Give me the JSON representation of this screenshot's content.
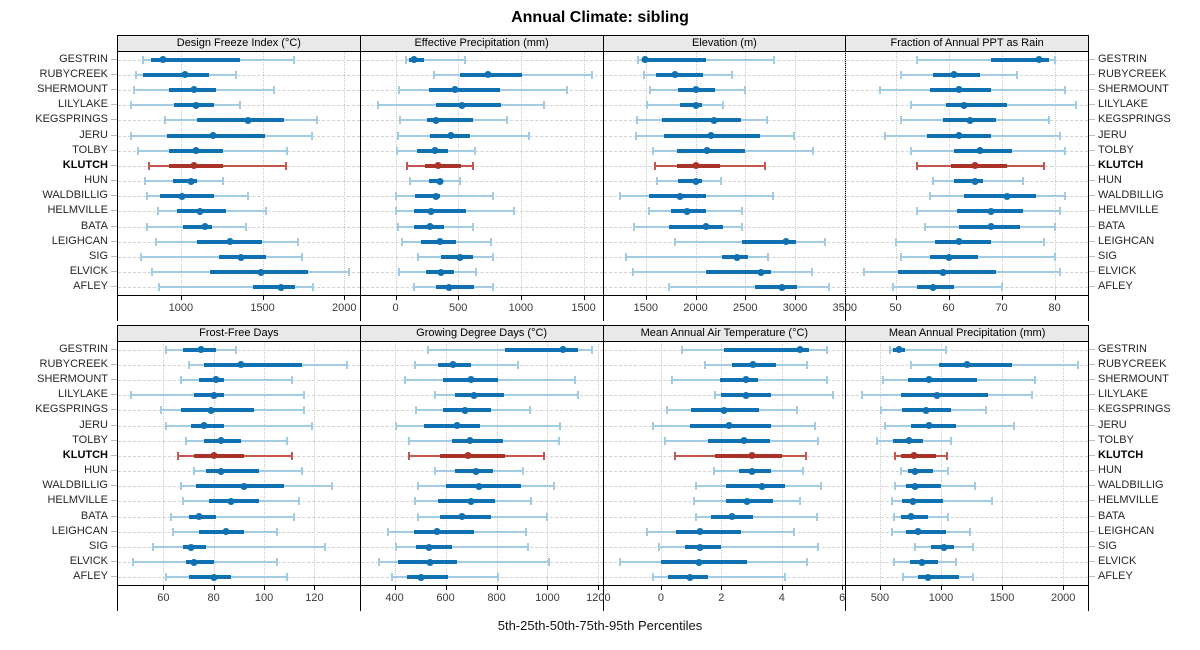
{
  "title": "Annual Climate: sibling",
  "caption": "5th-25th-50th-75th-95th Percentiles",
  "sites": [
    "GESTRIN",
    "RUBYCREEK",
    "SHERMOUNT",
    "LILYLAKE",
    "KEGSPRINGS",
    "JERU",
    "TOLBY",
    "KLUTCH",
    "HUN",
    "WALDBILLIG",
    "HELMVILLE",
    "BATA",
    "LEIGHCAN",
    "SIG",
    "ELVICK",
    "AFLEY"
  ],
  "highlight_site": "KLUTCH",
  "colors": {
    "blue_light": "#a3cce3",
    "blue_dark": "#0f71b2",
    "red_light": "#c4574e",
    "red_dark": "#a93229",
    "grid": "#d2d2d2",
    "strip_bg": "#e9e9e9",
    "border": "#000000"
  },
  "legend_note": "Each row shows 5th, 25th, 50th, 75th, 95th percentiles; thin line = 5th-95th, thick bar = 25th-75th, dot = median",
  "chart_data": [
    {
      "type": "interval",
      "title": "Design Freeze Index (°C)",
      "axis_min": 615,
      "axis_max": 2095,
      "ticks": [
        1000,
        1500,
        2000
      ],
      "values": [
        [
          770,
          815,
          890,
          1360,
          1690
        ],
        [
          725,
          770,
          1025,
          1170,
          1340
        ],
        [
          715,
          925,
          1080,
          1215,
          1570
        ],
        [
          695,
          955,
          1095,
          1205,
          1360
        ],
        [
          900,
          1100,
          1410,
          1630,
          1835
        ],
        [
          695,
          915,
          1195,
          1515,
          1805
        ],
        [
          735,
          925,
          1090,
          1255,
          1650
        ],
        [
          805,
          925,
          1080,
          1255,
          1645
        ],
        [
          780,
          950,
          1060,
          1100,
          1255
        ],
        [
          790,
          870,
          1005,
          1205,
          1410
        ],
        [
          860,
          975,
          1115,
          1275,
          1520
        ],
        [
          795,
          1015,
          1150,
          1190,
          1400
        ],
        [
          845,
          1100,
          1300,
          1495,
          1720
        ],
        [
          755,
          1235,
          1365,
          1520,
          1740
        ],
        [
          825,
          1180,
          1490,
          1780,
          2030
        ],
        [
          865,
          1440,
          1610,
          1700,
          1810
        ]
      ]
    },
    {
      "type": "interval",
      "title": "Effective Precipitation (mm)",
      "axis_min": -278,
      "axis_max": 1651,
      "ticks": [
        0,
        500,
        1000,
        1500
      ],
      "values": [
        [
          80,
          105,
          150,
          230,
          555
        ],
        [
          310,
          510,
          735,
          1010,
          1565
        ],
        [
          25,
          265,
          475,
          830,
          1370
        ],
        [
          -140,
          325,
          530,
          845,
          1185
        ],
        [
          35,
          250,
          320,
          620,
          885
        ],
        [
          20,
          275,
          445,
          595,
          1065
        ],
        [
          10,
          170,
          315,
          415,
          630
        ],
        [
          90,
          235,
          335,
          525,
          615
        ],
        [
          115,
          270,
          355,
          370,
          515
        ],
        [
          5,
          155,
          325,
          355,
          780
        ],
        [
          0,
          145,
          285,
          560,
          945
        ],
        [
          20,
          145,
          275,
          390,
          620
        ],
        [
          55,
          205,
          355,
          480,
          760
        ],
        [
          175,
          365,
          510,
          615,
          775
        ],
        [
          25,
          245,
          360,
          470,
          645
        ],
        [
          150,
          320,
          425,
          625,
          775
        ]
      ]
    },
    {
      "type": "interval",
      "title": "Elevation (m)",
      "axis_min": 1075,
      "axis_max": 3505,
      "ticks": [
        1500,
        2000,
        2500,
        3000,
        3500
      ],
      "values": [
        [
          1420,
          1460,
          1495,
          2105,
          2790
        ],
        [
          1485,
          1600,
          1790,
          2080,
          2365
        ],
        [
          1540,
          1820,
          2000,
          2200,
          2495
        ],
        [
          1510,
          1845,
          2000,
          2070,
          2275
        ],
        [
          1410,
          1665,
          2185,
          2460,
          2720
        ],
        [
          1400,
          1680,
          2155,
          2645,
          2985
        ],
        [
          1575,
          1810,
          2120,
          2495,
          3185
        ],
        [
          1590,
          1810,
          2005,
          2250,
          2695
        ],
        [
          1610,
          1825,
          2000,
          2070,
          2260
        ],
        [
          1240,
          1535,
          1845,
          2105,
          2775
        ],
        [
          1535,
          1755,
          1915,
          2105,
          2470
        ],
        [
          1385,
          1730,
          2110,
          2275,
          2470
        ],
        [
          1795,
          2465,
          2905,
          3010,
          3305
        ],
        [
          1305,
          2270,
          2415,
          2530,
          2730
        ],
        [
          1370,
          2105,
          2660,
          2760,
          3175
        ],
        [
          1730,
          2595,
          2870,
          3020,
          3345
        ]
      ]
    },
    {
      "type": "interval",
      "title": "Fraction of Annual PPT as Rain",
      "axis_min": 40.7,
      "axis_max": 86.3,
      "ticks": [
        50,
        60,
        70,
        80
      ],
      "values": [
        [
          54,
          68,
          77,
          79,
          80
        ],
        [
          51,
          57,
          61,
          66,
          73
        ],
        [
          47,
          56.5,
          62,
          68,
          82
        ],
        [
          53,
          59.5,
          63,
          71,
          84
        ],
        [
          51,
          59,
          64,
          69,
          79
        ],
        [
          48,
          56,
          62,
          68,
          81
        ],
        [
          53,
          61,
          66,
          72,
          82
        ],
        [
          54,
          60.5,
          65,
          71,
          78
        ],
        [
          57,
          61,
          65,
          66.5,
          74
        ],
        [
          56.5,
          63,
          71,
          76.5,
          82
        ],
        [
          54,
          61.5,
          68,
          74,
          81
        ],
        [
          55.5,
          62,
          68,
          73.5,
          80
        ],
        [
          50,
          57.5,
          62,
          68,
          78
        ],
        [
          51,
          56.5,
          60,
          65.5,
          80
        ],
        [
          44,
          50.5,
          59,
          69,
          81
        ],
        [
          49.5,
          54,
          57,
          61,
          70
        ]
      ]
    },
    {
      "type": "interval",
      "title": "Frost-Free Days",
      "axis_min": 42,
      "axis_max": 138,
      "ticks": [
        60,
        80,
        100,
        120
      ],
      "values": [
        [
          61,
          68,
          75,
          81,
          89
        ],
        [
          70,
          76,
          91,
          115,
          133
        ],
        [
          67,
          74,
          81,
          84,
          111
        ],
        [
          47,
          72,
          80,
          84,
          116
        ],
        [
          59,
          67,
          79,
          96,
          116
        ],
        [
          61,
          71,
          76,
          84,
          119
        ],
        [
          69,
          76,
          83,
          91,
          109
        ],
        [
          66,
          72,
          80,
          92,
          111
        ],
        [
          72,
          77,
          83,
          98,
          115
        ],
        [
          67,
          73,
          92,
          108,
          127
        ],
        [
          68,
          78,
          87,
          98,
          114
        ],
        [
          63,
          70,
          74,
          81,
          112
        ],
        [
          64,
          74,
          85,
          92,
          105
        ],
        [
          56,
          68,
          71,
          77,
          124
        ],
        [
          48,
          69,
          72,
          80,
          105
        ],
        [
          61,
          70,
          80,
          87,
          109
        ]
      ]
    },
    {
      "type": "interval",
      "title": "Growing Degree Days (°C)",
      "axis_min": 267,
      "axis_max": 1216,
      "ticks": [
        400,
        600,
        800,
        1000,
        1200
      ],
      "values": [
        [
          530,
          835,
          1060,
          1120,
          1175
        ],
        [
          480,
          570,
          630,
          700,
          885
        ],
        [
          440,
          590,
          700,
          805,
          1110
        ],
        [
          560,
          635,
          710,
          830,
          1120
        ],
        [
          485,
          590,
          675,
          780,
          930
        ],
        [
          405,
          515,
          645,
          735,
          1050
        ],
        [
          455,
          625,
          695,
          825,
          1045
        ],
        [
          455,
          580,
          690,
          835,
          985
        ],
        [
          560,
          635,
          720,
          785,
          905
        ],
        [
          490,
          600,
          730,
          895,
          1025
        ],
        [
          480,
          570,
          700,
          795,
          935
        ],
        [
          490,
          580,
          665,
          780,
          1000
        ],
        [
          375,
          475,
          565,
          710,
          915
        ],
        [
          405,
          485,
          535,
          625,
          925
        ],
        [
          340,
          415,
          540,
          645,
          1005
        ],
        [
          390,
          450,
          505,
          610,
          805
        ]
      ]
    },
    {
      "type": "interval",
      "title": "Mean Annual Air Temperature (°C)",
      "axis_min": -1.9,
      "axis_max": 6.1,
      "ticks": [
        0,
        2,
        4,
        6
      ],
      "values": [
        [
          0.7,
          2.1,
          4.6,
          4.9,
          5.5
        ],
        [
          1.45,
          2.35,
          3.05,
          3.8,
          4.85
        ],
        [
          0.35,
          1.95,
          2.8,
          3.2,
          5.5
        ],
        [
          1.8,
          2.0,
          2.8,
          3.65,
          5.7
        ],
        [
          0.2,
          1.0,
          2.1,
          3.25,
          4.5
        ],
        [
          -0.25,
          0.95,
          2.25,
          3.65,
          5.1
        ],
        [
          0.15,
          1.55,
          2.75,
          3.6,
          5.2
        ],
        [
          0.45,
          1.8,
          3.0,
          4.0,
          4.8
        ],
        [
          1.75,
          2.6,
          3.0,
          3.65,
          4.7
        ],
        [
          1.15,
          2.15,
          3.35,
          4.1,
          5.3
        ],
        [
          1.1,
          2.15,
          2.85,
          3.7,
          4.6
        ],
        [
          1.15,
          1.65,
          2.35,
          3.05,
          5.15
        ],
        [
          -0.45,
          0.5,
          1.3,
          2.65,
          4.4
        ],
        [
          -0.05,
          0.8,
          1.3,
          2.0,
          5.2
        ],
        [
          -1.35,
          0.0,
          1.25,
          2.85,
          4.85
        ],
        [
          -0.25,
          0.25,
          0.95,
          1.55,
          4.1
        ]
      ]
    },
    {
      "type": "interval",
      "title": "Mean Annual Precipitation (mm)",
      "axis_min": 224,
      "axis_max": 2203,
      "ticks": [
        500,
        1000,
        1500,
        2000
      ],
      "values": [
        [
          580,
          605,
          655,
          705,
          1040
        ],
        [
          755,
          980,
          1215,
          1580,
          2120
        ],
        [
          525,
          730,
          905,
          1295,
          1770
        ],
        [
          355,
          670,
          970,
          1385,
          1745
        ],
        [
          510,
          680,
          880,
          1080,
          1365
        ],
        [
          540,
          755,
          900,
          1120,
          1595
        ],
        [
          475,
          610,
          735,
          850,
          1080
        ],
        [
          625,
          670,
          775,
          960,
          1050
        ],
        [
          675,
          730,
          790,
          930,
          1055
        ],
        [
          625,
          715,
          785,
          1000,
          1275
        ],
        [
          595,
          680,
          770,
          1020,
          1420
        ],
        [
          615,
          675,
          750,
          890,
          1055
        ],
        [
          595,
          715,
          815,
          1040,
          1240
        ],
        [
          790,
          915,
          1025,
          1110,
          1265
        ],
        [
          615,
          745,
          845,
          975,
          1120
        ],
        [
          690,
          815,
          890,
          1145,
          1265
        ]
      ]
    }
  ]
}
